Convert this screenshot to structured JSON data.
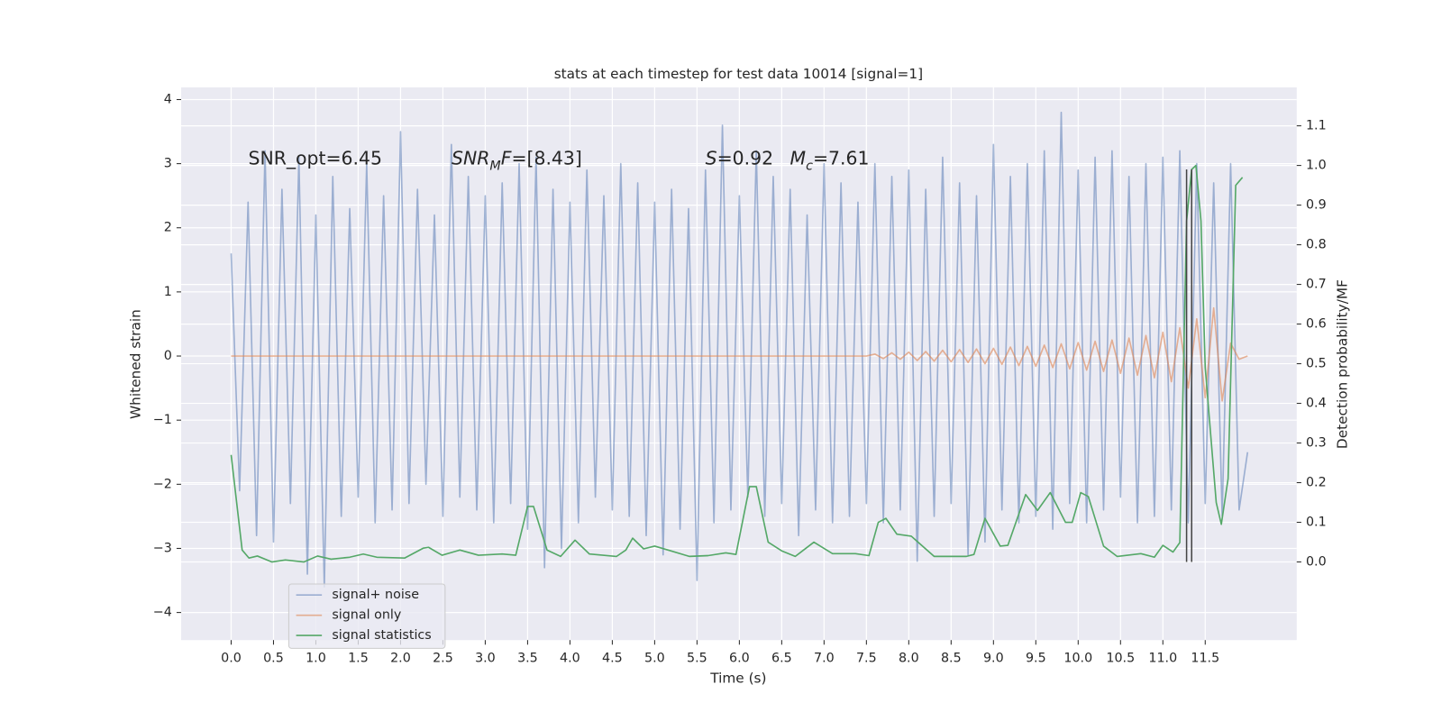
{
  "chart_data": {
    "type": "line",
    "title": "stats at each timestep for test data 10014 [signal=1]",
    "xlabel": "Time (s)",
    "ylabel": "Whitened strain",
    "y2label": "Detection probability/MF",
    "xlim": [
      -0.59,
      12.58
    ],
    "ylim": [
      -4.43,
      4.19
    ],
    "y2lim": [
      -0.197,
      1.197
    ],
    "grid": true,
    "legend": "lower left",
    "xticks": [
      {
        "value": 0,
        "label": "0.0"
      },
      {
        "value": 0.5,
        "label": "0.5"
      },
      {
        "value": 1,
        "label": "1.0"
      },
      {
        "value": 1.5,
        "label": "1.5"
      },
      {
        "value": 2,
        "label": "2.0"
      },
      {
        "value": 2.5,
        "label": "2.5"
      },
      {
        "value": 3,
        "label": "3.0"
      },
      {
        "value": 3.5,
        "label": "3.5"
      },
      {
        "value": 4,
        "label": "4.0"
      },
      {
        "value": 4.5,
        "label": "4.5"
      },
      {
        "value": 5,
        "label": "5.0"
      },
      {
        "value": 5.5,
        "label": "5.5"
      },
      {
        "value": 6,
        "label": "6.0"
      },
      {
        "value": 6.5,
        "label": "6.5"
      },
      {
        "value": 7,
        "label": "7.0"
      },
      {
        "value": 7.5,
        "label": "7.5"
      },
      {
        "value": 8,
        "label": "8.0"
      },
      {
        "value": 8.5,
        "label": "8.5"
      },
      {
        "value": 9,
        "label": "9.0"
      },
      {
        "value": 9.5,
        "label": "9.5"
      },
      {
        "value": 10,
        "label": "10.0"
      },
      {
        "value": 10.5,
        "label": "10.5"
      },
      {
        "value": 11,
        "label": "11.0"
      },
      {
        "value": 11.5,
        "label": "11.5"
      }
    ],
    "yticks": [
      {
        "value": -4,
        "label": "−4"
      },
      {
        "value": -3,
        "label": "−3"
      },
      {
        "value": -2,
        "label": "−2"
      },
      {
        "value": -1,
        "label": "−1"
      },
      0,
      1,
      2,
      3,
      4
    ],
    "y2ticks": [
      {
        "value": 0,
        "label": "0.0"
      },
      {
        "value": 0.1,
        "label": "0.1"
      },
      {
        "value": 0.2,
        "label": "0.2"
      },
      {
        "value": 0.3,
        "label": "0.3"
      },
      {
        "value": 0.4,
        "label": "0.4"
      },
      {
        "value": 0.5,
        "label": "0.5"
      },
      {
        "value": 0.6,
        "label": "0.6"
      },
      {
        "value": 0.7,
        "label": "0.7"
      },
      {
        "value": 0.8,
        "label": "0.8"
      },
      {
        "value": 0.9,
        "label": "0.9"
      },
      {
        "value": 1,
        "label": "1.0"
      },
      {
        "value": 1.1,
        "label": "1.1"
      }
    ],
    "series": [
      {
        "name": "signal+ noise",
        "color": "#4c72b0",
        "opacity": 0.5,
        "x": [
          0,
          0.1,
          0.2,
          0.3,
          0.4,
          0.5,
          0.6,
          0.7,
          0.8,
          0.9,
          1,
          1.1,
          1.2,
          1.3,
          1.4,
          1.5,
          1.6,
          1.7,
          1.8,
          1.9,
          2,
          2.1,
          2.2,
          2.3,
          2.4,
          2.5,
          2.6,
          2.7,
          2.8,
          2.9,
          3,
          3.1,
          3.2,
          3.3,
          3.4,
          3.5,
          3.6,
          3.7,
          3.8,
          3.9,
          4,
          4.1,
          4.2,
          4.3,
          4.4,
          4.5,
          4.6,
          4.7,
          4.8,
          4.9,
          5,
          5.1,
          5.2,
          5.3,
          5.4,
          5.5,
          5.6,
          5.7,
          5.8,
          5.9,
          6,
          6.1,
          6.2,
          6.3,
          6.4,
          6.5,
          6.6,
          6.7,
          6.8,
          6.9,
          7,
          7.1,
          7.2,
          7.3,
          7.4,
          7.5,
          7.6,
          7.7,
          7.8,
          7.9,
          8,
          8.1,
          8.2,
          8.3,
          8.4,
          8.5,
          8.6,
          8.7,
          8.8,
          8.9,
          9,
          9.1,
          9.2,
          9.3,
          9.4,
          9.5,
          9.6,
          9.7,
          9.8,
          9.9,
          10,
          10.1,
          10.2,
          10.3,
          10.4,
          10.5,
          10.6,
          10.7,
          10.8,
          10.9,
          11,
          11.1,
          11.2,
          11.3,
          11.4,
          11.5,
          11.6,
          11.7,
          11.8,
          11.9,
          12
        ],
        "values": [
          1.6,
          -2.1,
          2.4,
          -2.8,
          3.2,
          -2.9,
          2.6,
          -2.3,
          3.1,
          -3.4,
          2.2,
          -3.6,
          2.8,
          -2.5,
          2.3,
          -2.2,
          3.0,
          -2.6,
          2.5,
          -2.4,
          3.5,
          -2.3,
          2.6,
          -2.0,
          2.2,
          -2.5,
          3.3,
          -2.2,
          2.8,
          -2.4,
          2.5,
          -2.6,
          2.7,
          -2.3,
          3.0,
          -2.7,
          3.1,
          -3.3,
          2.6,
          -3.0,
          2.4,
          -2.6,
          2.9,
          -2.2,
          2.5,
          -2.4,
          3.0,
          -2.5,
          2.7,
          -2.8,
          2.4,
          -3.1,
          2.6,
          -2.7,
          2.3,
          -3.5,
          2.9,
          -2.6,
          3.6,
          -2.4,
          2.5,
          -2.2,
          3.2,
          -2.5,
          2.8,
          -2.3,
          2.6,
          -2.8,
          2.2,
          -2.4,
          3.0,
          -2.6,
          2.7,
          -2.5,
          2.4,
          -2.3,
          3.0,
          -2.6,
          2.8,
          -2.4,
          2.9,
          -3.2,
          2.6,
          -2.5,
          3.1,
          -2.3,
          2.7,
          -3.1,
          2.5,
          -2.9,
          3.3,
          -2.4,
          2.8,
          -2.6,
          3.0,
          -2.5,
          3.2,
          -2.7,
          3.8,
          -2.3,
          2.9,
          -2.6,
          3.1,
          -2.4,
          3.2,
          -2.2,
          2.8,
          -2.6,
          3.0,
          -2.5,
          3.1,
          -2.4,
          3.2,
          -2.6,
          3.0,
          -2.3,
          2.7,
          -2.5,
          3.0,
          -2.4,
          -1.5
        ]
      },
      {
        "name": "signal only",
        "color": "#dd8452",
        "opacity": 0.6,
        "x": [
          0,
          7.5,
          7.6,
          7.7,
          7.8,
          7.9,
          8,
          8.1,
          8.2,
          8.3,
          8.4,
          8.5,
          8.6,
          8.7,
          8.8,
          8.9,
          9,
          9.1,
          9.2,
          9.3,
          9.4,
          9.5,
          9.6,
          9.7,
          9.8,
          9.9,
          10,
          10.1,
          10.2,
          10.3,
          10.4,
          10.5,
          10.6,
          10.7,
          10.8,
          10.9,
          11,
          11.1,
          11.2,
          11.3,
          11.4,
          11.5,
          11.6,
          11.7,
          11.8,
          11.9,
          12
        ],
        "values": [
          0,
          0,
          0.03,
          -0.04,
          0.05,
          -0.05,
          0.06,
          -0.07,
          0.07,
          -0.08,
          0.09,
          -0.09,
          0.1,
          -0.1,
          0.11,
          -0.12,
          0.12,
          -0.13,
          0.14,
          -0.15,
          0.15,
          -0.16,
          0.17,
          -0.18,
          0.19,
          -0.2,
          0.21,
          -0.22,
          0.23,
          -0.24,
          0.25,
          -0.27,
          0.28,
          -0.3,
          0.32,
          -0.34,
          0.37,
          -0.4,
          0.44,
          -0.5,
          0.58,
          -0.65,
          0.75,
          -0.7,
          0.2,
          -0.05,
          0
        ]
      },
      {
        "name": "signal statistics",
        "color": "#55a868",
        "opacity": 1,
        "axis": "y2",
        "x": [
          0,
          0.13,
          0.21,
          0.31,
          0.48,
          0.64,
          0.86,
          1.02,
          1.18,
          1.4,
          1.56,
          1.72,
          2.05,
          2.27,
          2.33,
          2.49,
          2.7,
          2.92,
          3.2,
          3.36,
          3.5,
          3.57,
          3.73,
          3.89,
          4.06,
          4.23,
          4.55,
          4.66,
          4.74,
          4.87,
          5,
          5.19,
          5.41,
          5.63,
          5.84,
          5.96,
          6.12,
          6.2,
          6.34,
          6.5,
          6.66,
          6.88,
          7.1,
          7.37,
          7.53,
          7.64,
          7.73,
          7.86,
          8.03,
          8.3,
          8.68,
          8.77,
          8.9,
          9.08,
          9.17,
          9.38,
          9.52,
          9.67,
          9.85,
          9.93,
          10.03,
          10.12,
          10.3,
          10.46,
          10.74,
          10.9,
          11,
          11.12,
          11.2,
          11.28,
          11.34,
          11.39,
          11.45,
          11.5,
          11.63,
          11.69,
          11.77,
          11.86,
          11.94
        ],
        "values": [
          0.27,
          0.03,
          0.01,
          0.015,
          0.0,
          0.005,
          0.0,
          0.015,
          0.007,
          0.012,
          0.02,
          0.012,
          0.01,
          0.035,
          0.037,
          0.017,
          0.03,
          0.017,
          0.02,
          0.017,
          0.14,
          0.14,
          0.03,
          0.014,
          0.055,
          0.02,
          0.014,
          0.03,
          0.06,
          0.033,
          0.04,
          0.028,
          0.014,
          0.016,
          0.023,
          0.019,
          0.19,
          0.19,
          0.05,
          0.028,
          0.014,
          0.05,
          0.021,
          0.021,
          0.016,
          0.1,
          0.11,
          0.07,
          0.065,
          0.014,
          0.014,
          0.019,
          0.11,
          0.04,
          0.042,
          0.17,
          0.13,
          0.175,
          0.1,
          0.1,
          0.175,
          0.165,
          0.04,
          0.014,
          0.021,
          0.012,
          0.042,
          0.025,
          0.049,
          0.86,
          0.99,
          1.0,
          0.86,
          0.49,
          0.15,
          0.095,
          0.21,
          0.95,
          0.97
        ]
      }
    ],
    "vlines": {
      "x": [
        11.28,
        11.34
      ],
      "ymin": 0,
      "ymax": 0.99,
      "color": "#444444",
      "axis": "y2"
    },
    "annotations": [
      [
        {
          "text": "SNR_opt=6.45",
          "style": "normal"
        }
      ],
      [
        {
          "text": "SNR",
          "style": "italic"
        },
        {
          "text": "M",
          "style": "sub"
        },
        {
          "text": "F",
          "style": "italic"
        },
        {
          "text": "=[8.43]",
          "style": "normal"
        }
      ],
      [
        {
          "text": "S",
          "style": "italic"
        },
        {
          "text": "=0.92",
          "style": "normal"
        }
      ],
      [
        {
          "text": "M",
          "style": "italic"
        },
        {
          "text": "c",
          "style": "sub"
        },
        {
          "text": "=7.61",
          "style": "normal"
        }
      ]
    ]
  }
}
